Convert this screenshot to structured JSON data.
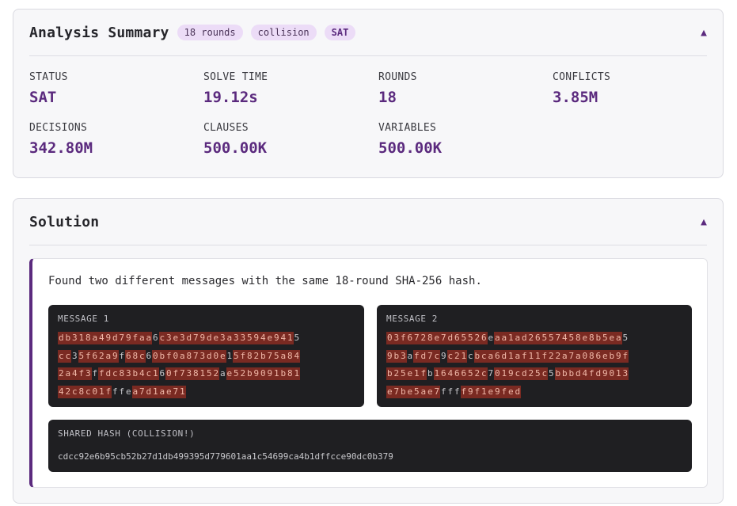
{
  "analysis": {
    "title": "Analysis Summary",
    "badges": [
      "18 rounds",
      "collision",
      "SAT"
    ],
    "stats": [
      {
        "label": "STATUS",
        "value": "SAT"
      },
      {
        "label": "SOLVE TIME",
        "value": "19.12s"
      },
      {
        "label": "ROUNDS",
        "value": "18"
      },
      {
        "label": "CONFLICTS",
        "value": "3.85M"
      },
      {
        "label": "DECISIONS",
        "value": "342.80M"
      },
      {
        "label": "CLAUSES",
        "value": "500.00K"
      },
      {
        "label": "VARIABLES",
        "value": "500.00K"
      }
    ]
  },
  "solution": {
    "title": "Solution",
    "message": "Found two different messages with the same 18-round SHA-256 hash.",
    "message1": {
      "label": "MESSAGE 1",
      "lines": [
        "db318a49d79faa6c3e3d79de3a33594e9415",
        "cc35f62a9f68c60bf0a873d0e15f82b75a84",
        "2a4f3ffdc83b4c160f738152ae52b9091b81",
        "42c8c01fffea7d1ae71"
      ],
      "normal_positions": [
        [
          14,
          35
        ],
        [
          2,
          9,
          13,
          25
        ],
        [
          5,
          15,
          24
        ],
        [
          8,
          9,
          10
        ]
      ]
    },
    "message2": {
      "label": "MESSAGE 2",
      "lines": [
        "03f6728e7d65526eaa1ad26557458e8b5ea5",
        "9b3afd7c9c21cbca6d1af11f22a7a086eb9f",
        "b25e1fb1646652c7019cd25c5bbbd4fd9013",
        "e7be5ae7ffff9f1e9fed"
      ],
      "normal_positions": [
        [
          15,
          35
        ],
        [
          3,
          8,
          12
        ],
        [
          6,
          15,
          24
        ],
        [
          8,
          9,
          10
        ]
      ]
    },
    "hash": {
      "label": "SHARED HASH (COLLISION!)",
      "value": "cdcc92e6b95cb52b27d1db499395d779601aa1c54699ca4b1dffcce90dc0b379"
    }
  },
  "colors": {
    "accent": "#5b2a7e",
    "highlight_bg": "#7a2a22",
    "highlight_fg": "#f0b8a8"
  }
}
